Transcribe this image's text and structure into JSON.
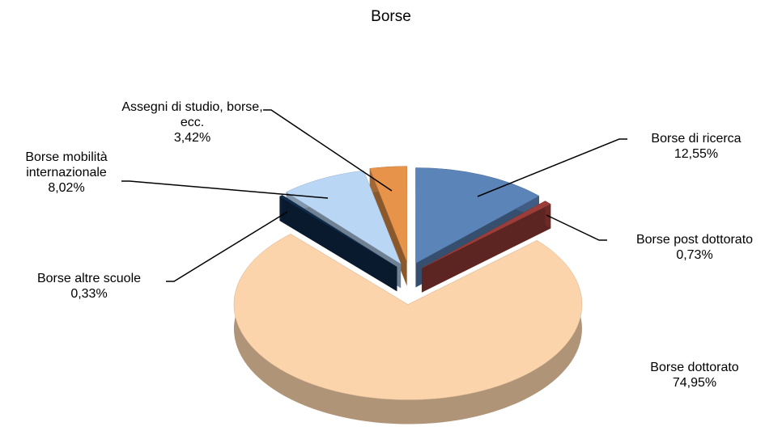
{
  "chart_data": {
    "type": "pie3d",
    "title": "Borse",
    "categories": [
      "Borse di ricerca",
      "Borse post dottorato",
      "Borse dottorato",
      "Borse altre scuole",
      "Borse mobilità internazionale",
      "Assegni di studio, borse, ecc."
    ],
    "values": [
      12.55,
      0.73,
      74.95,
      0.33,
      8.02,
      3.42
    ],
    "value_labels": [
      "12,55%",
      "0,73%",
      "74,95%",
      "0,33%",
      "8,02%",
      "3,42%"
    ],
    "colors": [
      "#5b84b9",
      "#9b3d38",
      "#fcd4ab",
      "#0f2c4c",
      "#b9d7f5",
      "#e7934a"
    ]
  }
}
